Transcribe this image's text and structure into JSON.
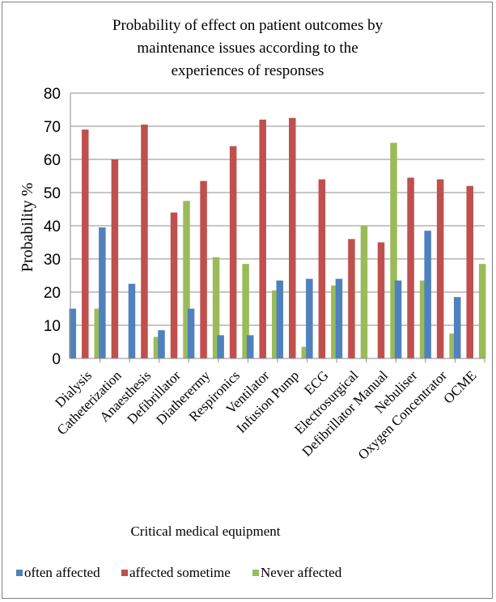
{
  "chart_data": {
    "type": "bar",
    "title_lines": [
      "Probability of effect on patient outcomes by",
      "maintenance issues according to the",
      "experiences of responses"
    ],
    "xlabel": "Critical medical equipment",
    "ylabel": "Probability %",
    "ylim": [
      0,
      80
    ],
    "yticks": [
      0,
      10,
      20,
      30,
      40,
      50,
      60,
      70,
      80
    ],
    "grid": true,
    "legend_position": "bottom",
    "categories": [
      "Dialysis",
      "Catheterization",
      "Anaesthesis",
      "Defibrillator",
      "Diatherermy",
      "Respironics",
      "Ventilator",
      "Infusion Pump",
      "ECG",
      "Electrosurgical",
      "Defibrillator Manual",
      "Nebuliser",
      "Oxygen Concentrator",
      "OCME"
    ],
    "series": [
      {
        "name": "often affected",
        "color": "#4f81bd",
        "values": [
          15,
          39.5,
          22.5,
          8.5,
          15,
          7,
          7,
          23.5,
          24,
          24,
          0,
          23.5,
          38.5,
          18.5
        ]
      },
      {
        "name": "affected sometime",
        "color": "#c0504d",
        "values": [
          69,
          60,
          70.5,
          44,
          53.5,
          64,
          72,
          72.5,
          54,
          36,
          35,
          54.5,
          54,
          52
        ]
      },
      {
        "name": "Never affected",
        "color": "#9bbb59",
        "values": [
          15,
          0,
          6.5,
          47.5,
          30.5,
          28.5,
          20.5,
          3.5,
          22,
          40,
          65,
          23.5,
          7.5,
          28.5
        ]
      }
    ]
  }
}
